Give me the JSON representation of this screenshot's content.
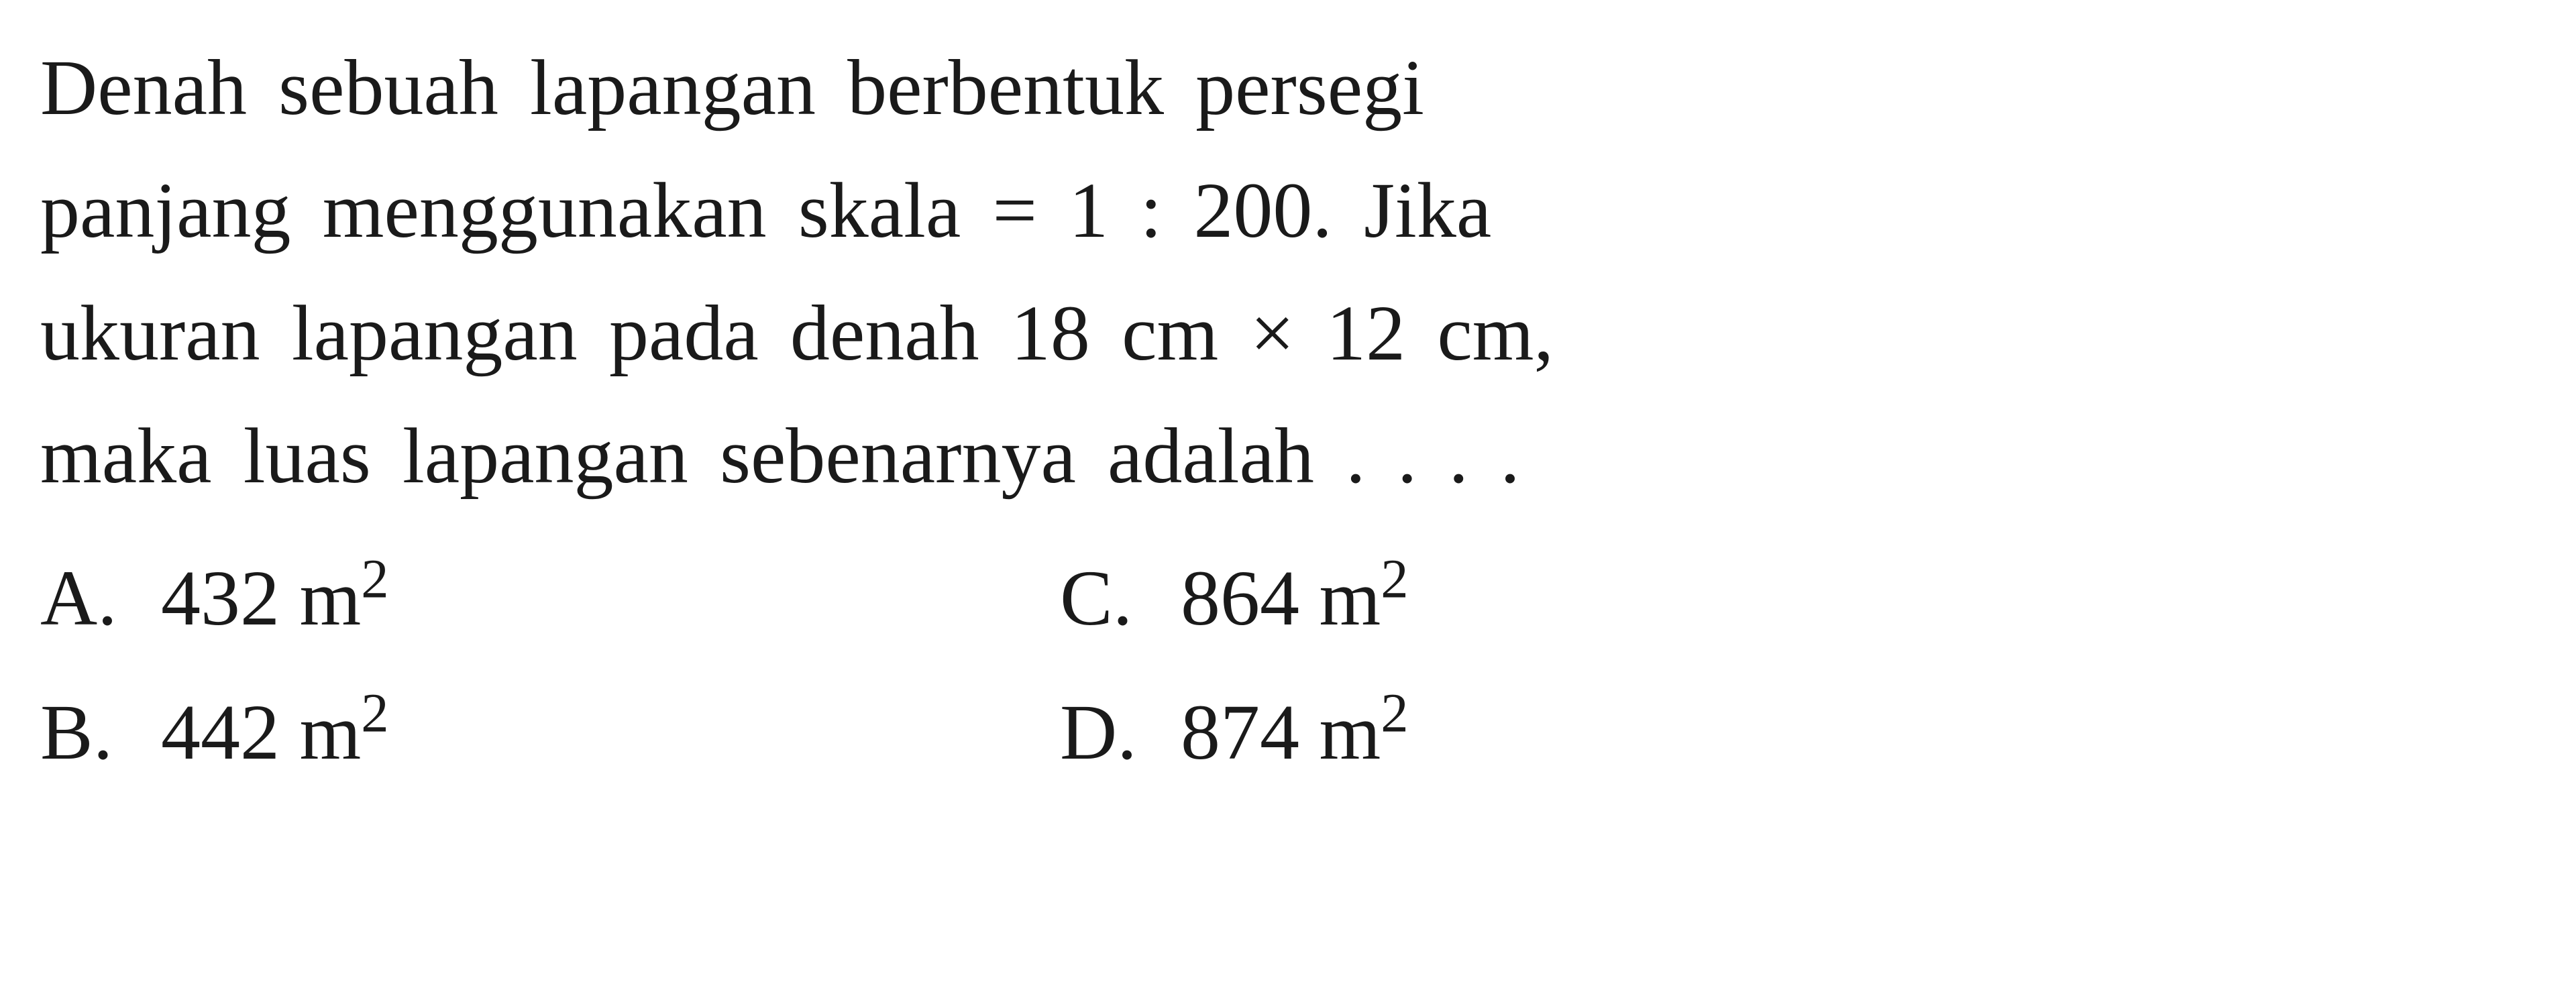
{
  "question": {
    "line1": "Denah sebuah lapangan berbentuk persegi",
    "line2": "panjang menggunakan skala = 1 : 200. Jika",
    "line3": "ukuran lapangan pada denah 18 cm × 12 cm,",
    "line4": "maka luas lapangan sebenarnya adalah . . . ."
  },
  "options": {
    "a": {
      "label": "A.",
      "value": "432 m",
      "exp": "2"
    },
    "b": {
      "label": "B.",
      "value": "442 m",
      "exp": "2"
    },
    "c": {
      "label": "C.",
      "value": "864 m",
      "exp": "2"
    },
    "d": {
      "label": "D.",
      "value": "874 m",
      "exp": "2"
    }
  },
  "styling": {
    "font_family": "Times New Roman, Georgia, serif",
    "font_size_pt": 118,
    "text_color": "#1a1a1a",
    "background_color": "#ffffff",
    "line_height": 1.55,
    "text_align": "justify"
  }
}
